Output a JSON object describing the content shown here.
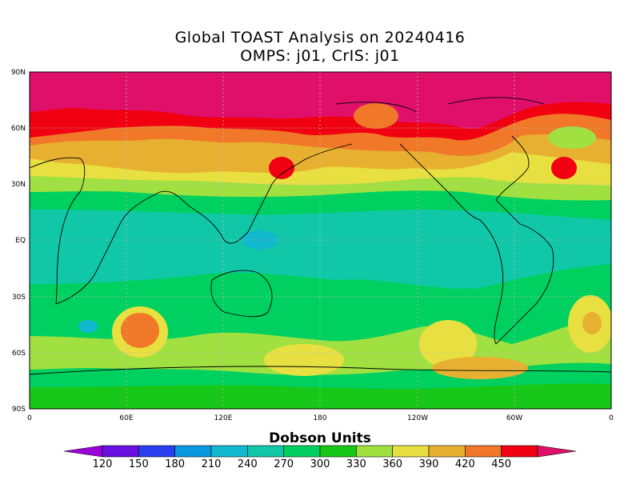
{
  "title": {
    "line1": "Global TOAST Analysis on 20240416",
    "line2": "OMPS: j01, CrIS: j01"
  },
  "map": {
    "lat_labels": [
      "90N",
      "60N",
      "30N",
      "EQ",
      "30S",
      "60S",
      "90S"
    ],
    "lon_labels": [
      "0",
      "60E",
      "120E",
      "180",
      "120W",
      "60W",
      "0"
    ],
    "gridlines": true
  },
  "colorbar": {
    "title": "Dobson Units",
    "tick_labels": [
      "120",
      "150",
      "180",
      "210",
      "240",
      "270",
      "300",
      "330",
      "360",
      "390",
      "420",
      "450"
    ],
    "colors": [
      "#9a00d8",
      "#6a10e0",
      "#2a40f0",
      "#0898e0",
      "#10b8d0",
      "#10c8a8",
      "#00d060",
      "#18c818",
      "#a0e040",
      "#e8e040",
      "#e8b030",
      "#f07828",
      "#f00010",
      "#e0106a"
    ]
  }
}
